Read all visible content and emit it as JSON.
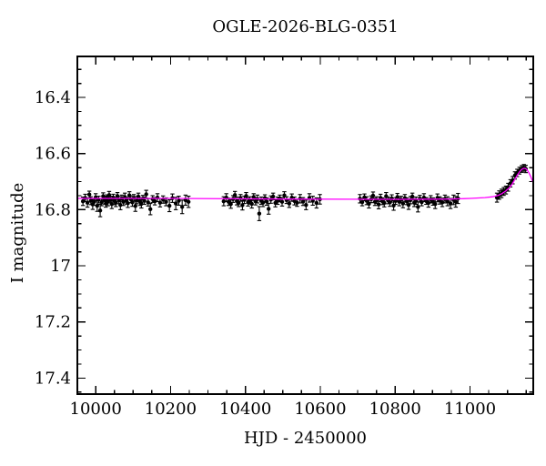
{
  "page": {
    "background": "#ffffff",
    "kind": "astronomical light-curve plot"
  },
  "chart_data": {
    "type": "scatter",
    "title": "OGLE-2026-BLG-0351",
    "xlabel": "HJD - 2450000",
    "ylabel": "I magnitude",
    "xlim": [
      9951,
      11169
    ],
    "ylim": [
      17.457,
      16.254
    ],
    "y_inverted": true,
    "grid": false,
    "legend": "none",
    "colors": {
      "points": "#000000",
      "model_curve": "#ff00ff",
      "frame": "#000000",
      "background": "#ffffff"
    },
    "x_major_ticks": [
      {
        "value": 10000,
        "label": "10000"
      },
      {
        "value": 10200,
        "label": "10200"
      },
      {
        "value": 10400,
        "label": "10400"
      },
      {
        "value": 10600,
        "label": "10600"
      },
      {
        "value": 10800,
        "label": "10800"
      },
      {
        "value": 11000,
        "label": "11000"
      }
    ],
    "x_minor_step": 50,
    "y_major_ticks": [
      {
        "value": 16.4,
        "label": "16.4"
      },
      {
        "value": 16.6,
        "label": "16.6"
      },
      {
        "value": 16.8,
        "label": "16.8"
      },
      {
        "value": 17.0,
        "label": "17"
      },
      {
        "value": 17.2,
        "label": "17.2"
      },
      {
        "value": 17.4,
        "label": "17.4"
      }
    ],
    "y_minor_step": 0.05,
    "series": [
      {
        "name": "I-band photometry (points with error bars)",
        "type": "scatter",
        "marker": "filled-circle-with-errorbar",
        "points": [
          [
            9966,
            16.77,
            0.015
          ],
          [
            9972,
            16.758,
            0.013
          ],
          [
            9978,
            16.775,
            0.016
          ],
          [
            9983,
            16.746,
            0.012
          ],
          [
            9987,
            16.768,
            0.014
          ],
          [
            9992,
            16.781,
            0.018
          ],
          [
            9996,
            16.772,
            0.012
          ],
          [
            10000,
            16.756,
            0.013
          ],
          [
            10004,
            16.786,
            0.02
          ],
          [
            10008,
            16.764,
            0.012
          ],
          [
            10012,
            16.803,
            0.022
          ],
          [
            10016,
            16.773,
            0.013
          ],
          [
            10020,
            16.752,
            0.012
          ],
          [
            10024,
            16.766,
            0.014
          ],
          [
            10027,
            16.778,
            0.013
          ],
          [
            10030,
            16.759,
            0.012
          ],
          [
            10033,
            16.771,
            0.015
          ],
          [
            10036,
            16.748,
            0.013
          ],
          [
            10040,
            16.764,
            0.012
          ],
          [
            10043,
            16.78,
            0.016
          ],
          [
            10047,
            16.757,
            0.012
          ],
          [
            10050,
            16.769,
            0.013
          ],
          [
            10054,
            16.775,
            0.014
          ],
          [
            10058,
            16.751,
            0.012
          ],
          [
            10062,
            16.766,
            0.013
          ],
          [
            10066,
            16.783,
            0.017
          ],
          [
            10070,
            16.76,
            0.012
          ],
          [
            10074,
            16.772,
            0.013
          ],
          [
            10078,
            16.755,
            0.014
          ],
          [
            10082,
            16.768,
            0.012
          ],
          [
            10086,
            16.777,
            0.015
          ],
          [
            10090,
            16.749,
            0.013
          ],
          [
            10094,
            16.763,
            0.012
          ],
          [
            10098,
            16.774,
            0.014
          ],
          [
            10102,
            16.758,
            0.012
          ],
          [
            10106,
            16.787,
            0.019
          ],
          [
            10110,
            16.766,
            0.013
          ],
          [
            10114,
            16.753,
            0.012
          ],
          [
            10118,
            16.771,
            0.014
          ],
          [
            10122,
            16.779,
            0.015
          ],
          [
            10126,
            16.761,
            0.012
          ],
          [
            10130,
            16.768,
            0.013
          ],
          [
            10135,
            16.745,
            0.014
          ],
          [
            10140,
            16.774,
            0.013
          ],
          [
            10146,
            16.798,
            0.02
          ],
          [
            10152,
            16.762,
            0.012
          ],
          [
            10158,
            16.77,
            0.013
          ],
          [
            10165,
            16.757,
            0.014
          ],
          [
            10172,
            16.775,
            0.015
          ],
          [
            10180,
            16.764,
            0.013
          ],
          [
            10188,
            16.772,
            0.014
          ],
          [
            10197,
            16.786,
            0.021
          ],
          [
            10205,
            16.759,
            0.015
          ],
          [
            10214,
            16.778,
            0.022
          ],
          [
            10222,
            16.768,
            0.016
          ],
          [
            10231,
            16.79,
            0.024
          ],
          [
            10240,
            16.766,
            0.018
          ],
          [
            10248,
            16.772,
            0.02
          ],
          [
            10342,
            16.77,
            0.016
          ],
          [
            10349,
            16.757,
            0.014
          ],
          [
            10355,
            16.772,
            0.013
          ],
          [
            10361,
            16.78,
            0.015
          ],
          [
            10367,
            16.762,
            0.012
          ],
          [
            10372,
            16.748,
            0.013
          ],
          [
            10377,
            16.769,
            0.014
          ],
          [
            10382,
            16.776,
            0.013
          ],
          [
            10387,
            16.758,
            0.012
          ],
          [
            10392,
            16.784,
            0.017
          ],
          [
            10397,
            16.765,
            0.013
          ],
          [
            10402,
            16.751,
            0.012
          ],
          [
            10407,
            16.773,
            0.014
          ],
          [
            10412,
            16.767,
            0.013
          ],
          [
            10417,
            16.779,
            0.015
          ],
          [
            10422,
            16.755,
            0.012
          ],
          [
            10427,
            16.77,
            0.013
          ],
          [
            10432,
            16.762,
            0.014
          ],
          [
            10437,
            16.814,
            0.025
          ],
          [
            10442,
            16.768,
            0.013
          ],
          [
            10447,
            16.775,
            0.014
          ],
          [
            10452,
            16.759,
            0.012
          ],
          [
            10457,
            16.771,
            0.013
          ],
          [
            10462,
            16.797,
            0.019
          ],
          [
            10468,
            16.764,
            0.013
          ],
          [
            10474,
            16.753,
            0.012
          ],
          [
            10480,
            16.776,
            0.014
          ],
          [
            10486,
            16.768,
            0.013
          ],
          [
            10492,
            16.76,
            0.012
          ],
          [
            10498,
            16.772,
            0.015
          ],
          [
            10504,
            16.749,
            0.013
          ],
          [
            10510,
            16.766,
            0.012
          ],
          [
            10517,
            16.778,
            0.014
          ],
          [
            10524,
            16.757,
            0.013
          ],
          [
            10531,
            16.769,
            0.014
          ],
          [
            10538,
            16.775,
            0.013
          ],
          [
            10546,
            16.761,
            0.015
          ],
          [
            10554,
            16.771,
            0.014
          ],
          [
            10562,
            16.783,
            0.017
          ],
          [
            10571,
            16.758,
            0.015
          ],
          [
            10580,
            16.768,
            0.016
          ],
          [
            10590,
            16.776,
            0.018
          ],
          [
            10599,
            16.763,
            0.017
          ],
          [
            10706,
            16.761,
            0.015
          ],
          [
            10712,
            16.773,
            0.013
          ],
          [
            10718,
            16.756,
            0.012
          ],
          [
            10724,
            16.768,
            0.014
          ],
          [
            10730,
            16.779,
            0.015
          ],
          [
            10736,
            16.763,
            0.012
          ],
          [
            10741,
            16.75,
            0.013
          ],
          [
            10746,
            16.772,
            0.013
          ],
          [
            10751,
            16.766,
            0.012
          ],
          [
            10756,
            16.781,
            0.016
          ],
          [
            10761,
            16.758,
            0.013
          ],
          [
            10766,
            16.77,
            0.012
          ],
          [
            10771,
            16.776,
            0.014
          ],
          [
            10776,
            16.752,
            0.013
          ],
          [
            10781,
            16.767,
            0.012
          ],
          [
            10786,
            16.774,
            0.014
          ],
          [
            10791,
            16.76,
            0.013
          ],
          [
            10796,
            16.785,
            0.017
          ],
          [
            10801,
            16.769,
            0.012
          ],
          [
            10806,
            16.755,
            0.013
          ],
          [
            10811,
            16.772,
            0.014
          ],
          [
            10816,
            16.764,
            0.012
          ],
          [
            10821,
            16.778,
            0.015
          ],
          [
            10826,
            16.759,
            0.013
          ],
          [
            10831,
            16.77,
            0.012
          ],
          [
            10836,
            16.783,
            0.016
          ],
          [
            10841,
            16.766,
            0.013
          ],
          [
            10846,
            16.753,
            0.012
          ],
          [
            10851,
            16.775,
            0.014
          ],
          [
            10856,
            16.768,
            0.013
          ],
          [
            10861,
            16.79,
            0.018
          ],
          [
            10866,
            16.761,
            0.012
          ],
          [
            10871,
            16.773,
            0.013
          ],
          [
            10877,
            16.757,
            0.014
          ],
          [
            10883,
            16.769,
            0.012
          ],
          [
            10889,
            16.776,
            0.015
          ],
          [
            10895,
            16.763,
            0.013
          ],
          [
            10901,
            16.771,
            0.013
          ],
          [
            10907,
            16.78,
            0.016
          ],
          [
            10913,
            16.758,
            0.014
          ],
          [
            10919,
            16.767,
            0.013
          ],
          [
            10926,
            16.774,
            0.015
          ],
          [
            10933,
            16.762,
            0.014
          ],
          [
            10940,
            16.77,
            0.016
          ],
          [
            10948,
            16.778,
            0.018
          ],
          [
            10956,
            16.765,
            0.017
          ],
          [
            10962,
            16.772,
            0.019
          ],
          [
            10968,
            16.76,
            0.018
          ],
          [
            11072,
            16.757,
            0.016
          ],
          [
            11078,
            16.748,
            0.015
          ],
          [
            11084,
            16.742,
            0.015
          ],
          [
            11090,
            16.735,
            0.014
          ],
          [
            11096,
            16.73,
            0.014
          ],
          [
            11102,
            16.72,
            0.014
          ],
          [
            11108,
            16.706,
            0.013
          ],
          [
            11114,
            16.695,
            0.013
          ],
          [
            11120,
            16.678,
            0.013
          ],
          [
            11126,
            16.669,
            0.013
          ],
          [
            11132,
            16.661,
            0.012
          ],
          [
            11138,
            16.655,
            0.012
          ],
          [
            11144,
            16.651,
            0.012
          ],
          [
            11149,
            16.655,
            0.013
          ]
        ]
      },
      {
        "name": "microlensing model curve",
        "type": "line",
        "points": [
          [
            9951,
            16.76
          ],
          [
            10200,
            16.76
          ],
          [
            10500,
            16.762
          ],
          [
            10800,
            16.763
          ],
          [
            10950,
            16.762
          ],
          [
            11000,
            16.76
          ],
          [
            11040,
            16.757
          ],
          [
            11060,
            16.754
          ],
          [
            11075,
            16.749
          ],
          [
            11085,
            16.743
          ],
          [
            11095,
            16.734
          ],
          [
            11105,
            16.722
          ],
          [
            11113,
            16.708
          ],
          [
            11120,
            16.692
          ],
          [
            11127,
            16.676
          ],
          [
            11133,
            16.664
          ],
          [
            11138,
            16.657
          ],
          [
            11143,
            16.653
          ],
          [
            11147,
            16.653
          ],
          [
            11151,
            16.656
          ],
          [
            11155,
            16.663
          ],
          [
            11159,
            16.673
          ],
          [
            11163,
            16.684
          ],
          [
            11166,
            16.695
          ],
          [
            11169,
            16.705
          ]
        ]
      }
    ]
  }
}
